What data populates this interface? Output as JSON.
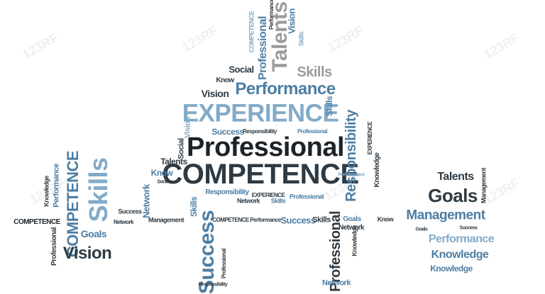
{
  "colors": {
    "dark": "#2e3a43",
    "mid": "#4d7ea3",
    "light": "#82abc8",
    "gray": "#9b9b9b",
    "black": "#1d2328"
  },
  "watermark": "123RF",
  "words": {
    "professional": "Professional",
    "competence": "COMPETENCE",
    "experience": "EXPERIENCE",
    "performance": "Performance",
    "responsibility": "Responsibility",
    "success": "Success",
    "skills": "Skills",
    "talents": "Talents",
    "goals": "Goals",
    "management": "Management",
    "knowledge": "Knowledge",
    "vision": "Vision",
    "network": "Network",
    "social": "Social",
    "know": "Know"
  }
}
